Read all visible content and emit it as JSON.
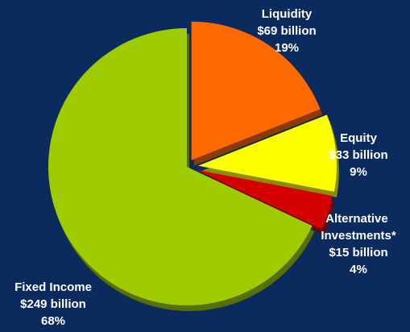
{
  "chart_data": {
    "type": "pie",
    "categories": [
      "Liquidity",
      "Equity",
      "Alternative Investments*",
      "Fixed Income"
    ],
    "values": [
      19,
      9,
      4,
      68
    ],
    "value_labels": [
      "19%",
      "9%",
      "4%",
      "68%"
    ],
    "amount_labels": [
      "$69 billion",
      "$33 billion",
      "$15 billion",
      "$249 billion"
    ],
    "colors": [
      "#ff6a00",
      "#ffff00",
      "#d40000",
      "#9fcc00"
    ]
  }
}
